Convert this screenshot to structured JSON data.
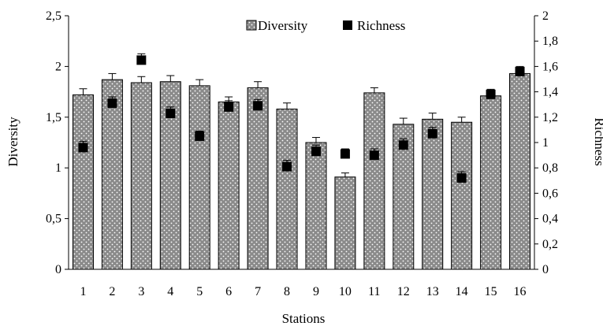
{
  "chart_data": {
    "type": "bar",
    "xlabel": "Stations",
    "ylabel": "Diversity",
    "y2label": "Richness",
    "categories": [
      "1",
      "2",
      "3",
      "4",
      "5",
      "6",
      "7",
      "8",
      "9",
      "10",
      "11",
      "12",
      "13",
      "14",
      "15",
      "16"
    ],
    "ylim": [
      0,
      2.5
    ],
    "y2lim": [
      0,
      2
    ],
    "y_ticks": [
      "0",
      "0,5",
      "1",
      "1,5",
      "2",
      "2,5"
    ],
    "y2_ticks": [
      "0",
      "0,2",
      "0,4",
      "0,6",
      "0,8",
      "1",
      "1,2",
      "1,4",
      "1,6",
      "1,8",
      "2"
    ],
    "legend_position": "top",
    "series": [
      {
        "name": "Diversity",
        "kind": "bar",
        "axis": "left",
        "values": [
          1.72,
          1.87,
          1.84,
          1.85,
          1.81,
          1.65,
          1.79,
          1.58,
          1.25,
          0.91,
          1.74,
          1.43,
          1.48,
          1.45,
          1.71,
          1.93
        ],
        "errors": [
          0.06,
          0.06,
          0.06,
          0.06,
          0.06,
          0.05,
          0.06,
          0.06,
          0.05,
          0.04,
          0.05,
          0.06,
          0.06,
          0.05,
          0.04,
          0.05
        ]
      },
      {
        "name": "Richness",
        "kind": "marker",
        "axis": "right",
        "values": [
          0.96,
          1.31,
          1.65,
          1.23,
          1.05,
          1.28,
          1.29,
          0.81,
          0.93,
          0.91,
          0.9,
          0.98,
          1.07,
          0.72,
          1.38,
          1.56
        ],
        "errors": [
          0.05,
          0.05,
          0.05,
          0.05,
          0.04,
          0.05,
          0.05,
          0.05,
          0.05,
          0.04,
          0.05,
          0.05,
          0.05,
          0.05,
          0.04,
          0.04
        ]
      }
    ],
    "colors": {
      "bar_fill": "#8a8a8a",
      "bar_dots": "#ffffff",
      "marker": "#000000",
      "axis": "#000000"
    }
  }
}
